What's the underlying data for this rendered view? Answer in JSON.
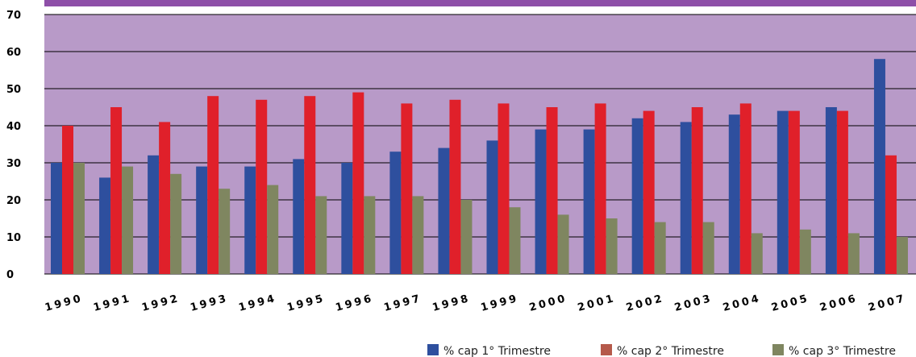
{
  "chart_data": {
    "type": "bar",
    "categories": [
      "1990",
      "1991",
      "1992",
      "1993",
      "1994",
      "1995",
      "1996",
      "1997",
      "1998",
      "1999",
      "2000",
      "2001",
      "2002",
      "2003",
      "2004",
      "2005",
      "2006",
      "2007"
    ],
    "series": [
      {
        "name": "% cap 1° Trimestre",
        "color": "#2e4f9e",
        "values": [
          30,
          26,
          32,
          29,
          29,
          31,
          30,
          33,
          34,
          36,
          39,
          39,
          42,
          41,
          43,
          44,
          45,
          58
        ]
      },
      {
        "name": "% cap 2° Trimestre",
        "color": "#e0202a",
        "legend_color": "#b5594a",
        "values": [
          40,
          45,
          41,
          48,
          47,
          48,
          49,
          46,
          47,
          46,
          45,
          46,
          44,
          45,
          46,
          44,
          44,
          32
        ]
      },
      {
        "name": "% cap 3° Trimestre",
        "color": "#7f8660",
        "values": [
          30,
          29,
          27,
          23,
          24,
          21,
          21,
          21,
          20,
          18,
          16,
          15,
          14,
          14,
          11,
          12,
          11,
          10
        ]
      }
    ],
    "yticks": [
      "0",
      "10",
      "20",
      "30",
      "40",
      "50",
      "60",
      "70"
    ],
    "ylim": [
      0,
      70
    ],
    "grid": true,
    "plot_background": "#b89ac8",
    "header_band_color": "#8e4fa8",
    "legend_position": "bottom-right"
  }
}
